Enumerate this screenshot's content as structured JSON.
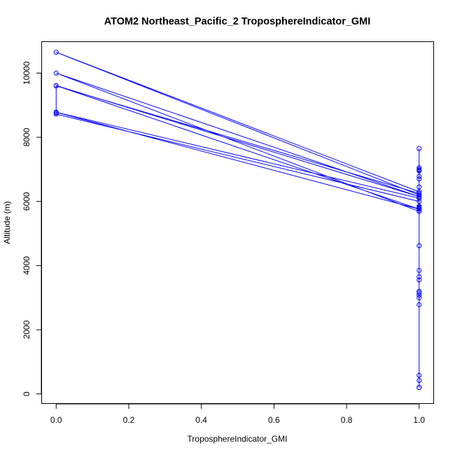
{
  "chart_data": {
    "type": "line",
    "title": "ATOM2 Northeast_Pacific_2 TroposphereIndicator_GMI",
    "xlabel": "TroposphereIndicator_GMI",
    "ylabel": "Altitude (m)",
    "xlim": [
      -0.04,
      1.04
    ],
    "ylim": [
      -300,
      10980
    ],
    "x_ticks": [
      0.0,
      0.2,
      0.4,
      0.6,
      0.8,
      1.0
    ],
    "x_tick_labels": [
      "0.0",
      "0.2",
      "0.4",
      "0.6",
      "0.8",
      "1.0"
    ],
    "y_ticks": [
      0,
      2000,
      4000,
      6000,
      8000,
      10000
    ],
    "y_tick_labels": [
      "0",
      "2000",
      "4000",
      "6000",
      "8000",
      "10000"
    ],
    "grid": false,
    "legend": "none",
    "color": "#0000ff",
    "series": [
      {
        "x": [
          1,
          1,
          1,
          1,
          1,
          1,
          1,
          1,
          1,
          1,
          1,
          1,
          1,
          1,
          1,
          1,
          1,
          1,
          1,
          1,
          1,
          1,
          1,
          1,
          1,
          1,
          1,
          0,
          0,
          0,
          1,
          0,
          1,
          0,
          1,
          1,
          0,
          1,
          1,
          0,
          0,
          1,
          1,
          1
        ],
        "y": [
          200,
          420,
          580,
          2780,
          3000,
          3080,
          3150,
          3200,
          3550,
          3650,
          3850,
          4620,
          5700,
          5780,
          5820,
          5850,
          6100,
          6250,
          6450,
          6700,
          6780,
          6950,
          7000,
          7050,
          7650,
          6970,
          6250,
          9600,
          8760,
          8780,
          5760,
          9610,
          6150,
          10000,
          5690,
          6200,
          10650,
          6300,
          6000,
          8720,
          8780,
          6100,
          5800,
          200
        ]
      }
    ]
  }
}
